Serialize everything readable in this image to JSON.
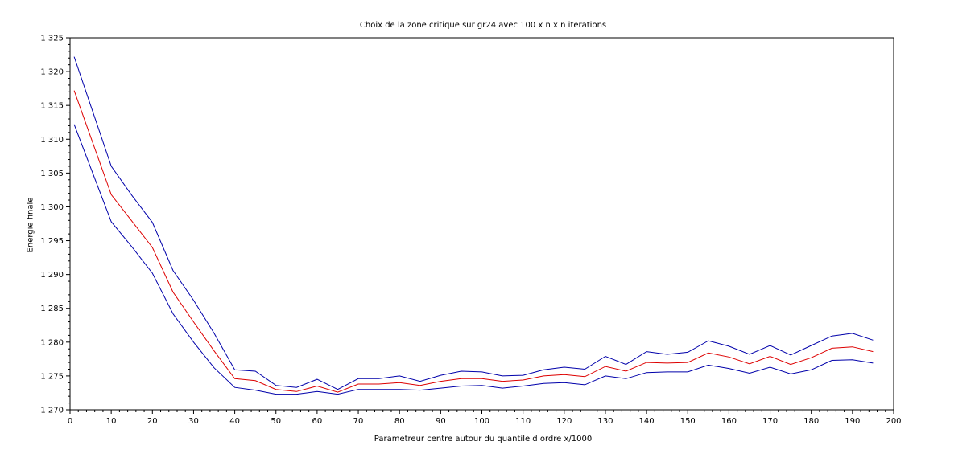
{
  "chart_data": {
    "type": "line",
    "title": "Choix de la zone critique sur gr24 avec 100 x n x n iterations",
    "xlabel": "Parametreur centre autour du quantile d ordre x/1000",
    "ylabel": "Energie finale",
    "xlim": [
      0,
      200
    ],
    "ylim": [
      1270,
      1325
    ],
    "xticks": [
      0,
      10,
      20,
      30,
      40,
      50,
      60,
      70,
      80,
      90,
      100,
      110,
      120,
      130,
      140,
      150,
      160,
      170,
      180,
      190,
      200
    ],
    "xtick_labels": [
      "0",
      "10",
      "20",
      "30",
      "40",
      "50",
      "60",
      "70",
      "80",
      "90",
      "100",
      "110",
      "120",
      "130",
      "140",
      "150",
      "160",
      "170",
      "180",
      "190",
      "200"
    ],
    "yticks": [
      1270,
      1275,
      1280,
      1285,
      1290,
      1295,
      1300,
      1305,
      1310,
      1315,
      1320,
      1325
    ],
    "ytick_labels": [
      "1 270",
      "1 275",
      "1 280",
      "1 285",
      "1 290",
      "1 295",
      "1 300",
      "1 305",
      "1 310",
      "1 315",
      "1 320",
      "1 325"
    ],
    "grid": false,
    "x": [
      1,
      10,
      15,
      20,
      25,
      30,
      35,
      40,
      45,
      50,
      55,
      60,
      65,
      70,
      75,
      80,
      85,
      90,
      95,
      100,
      105,
      110,
      115,
      120,
      125,
      130,
      135,
      140,
      145,
      150,
      155,
      160,
      165,
      170,
      175,
      180,
      185,
      190,
      195
    ],
    "series": [
      {
        "color": "#0000aa",
        "values": [
          1322.2,
          1306.0,
          1301.7,
          1297.7,
          1290.6,
          1286.2,
          1281.3,
          1275.9,
          1275.7,
          1273.6,
          1273.3,
          1274.5,
          1273.0,
          1274.6,
          1274.6,
          1275.0,
          1274.2,
          1275.1,
          1275.7,
          1275.6,
          1275.0,
          1275.1,
          1275.9,
          1276.3,
          1276.0,
          1277.9,
          1276.7,
          1278.6,
          1278.2,
          1278.5,
          1280.2,
          1279.4,
          1278.2,
          1279.5,
          1278.1,
          1279.5,
          1280.9,
          1281.3,
          1280.3
        ]
      },
      {
        "color": "#dd0000",
        "values": [
          1317.2,
          1301.8,
          1297.9,
          1294.0,
          1287.4,
          1283.0,
          1278.7,
          1274.6,
          1274.3,
          1273.0,
          1272.7,
          1273.5,
          1272.6,
          1273.8,
          1273.8,
          1274.0,
          1273.6,
          1274.2,
          1274.6,
          1274.6,
          1274.2,
          1274.4,
          1275.0,
          1275.2,
          1274.9,
          1276.4,
          1275.7,
          1277.0,
          1276.9,
          1277.0,
          1278.4,
          1277.8,
          1276.8,
          1277.9,
          1276.7,
          1277.7,
          1279.1,
          1279.3,
          1278.6
        ]
      },
      {
        "color": "#0000aa",
        "values": [
          1312.2,
          1297.8,
          1294.1,
          1290.2,
          1284.2,
          1280.0,
          1276.2,
          1273.3,
          1272.9,
          1272.3,
          1272.3,
          1272.7,
          1272.3,
          1273.0,
          1273.0,
          1273.0,
          1272.9,
          1273.2,
          1273.5,
          1273.6,
          1273.2,
          1273.5,
          1273.9,
          1274.0,
          1273.7,
          1275.0,
          1274.6,
          1275.5,
          1275.6,
          1275.6,
          1276.6,
          1276.1,
          1275.4,
          1276.3,
          1275.3,
          1275.9,
          1277.3,
          1277.4,
          1276.9
        ]
      }
    ]
  }
}
